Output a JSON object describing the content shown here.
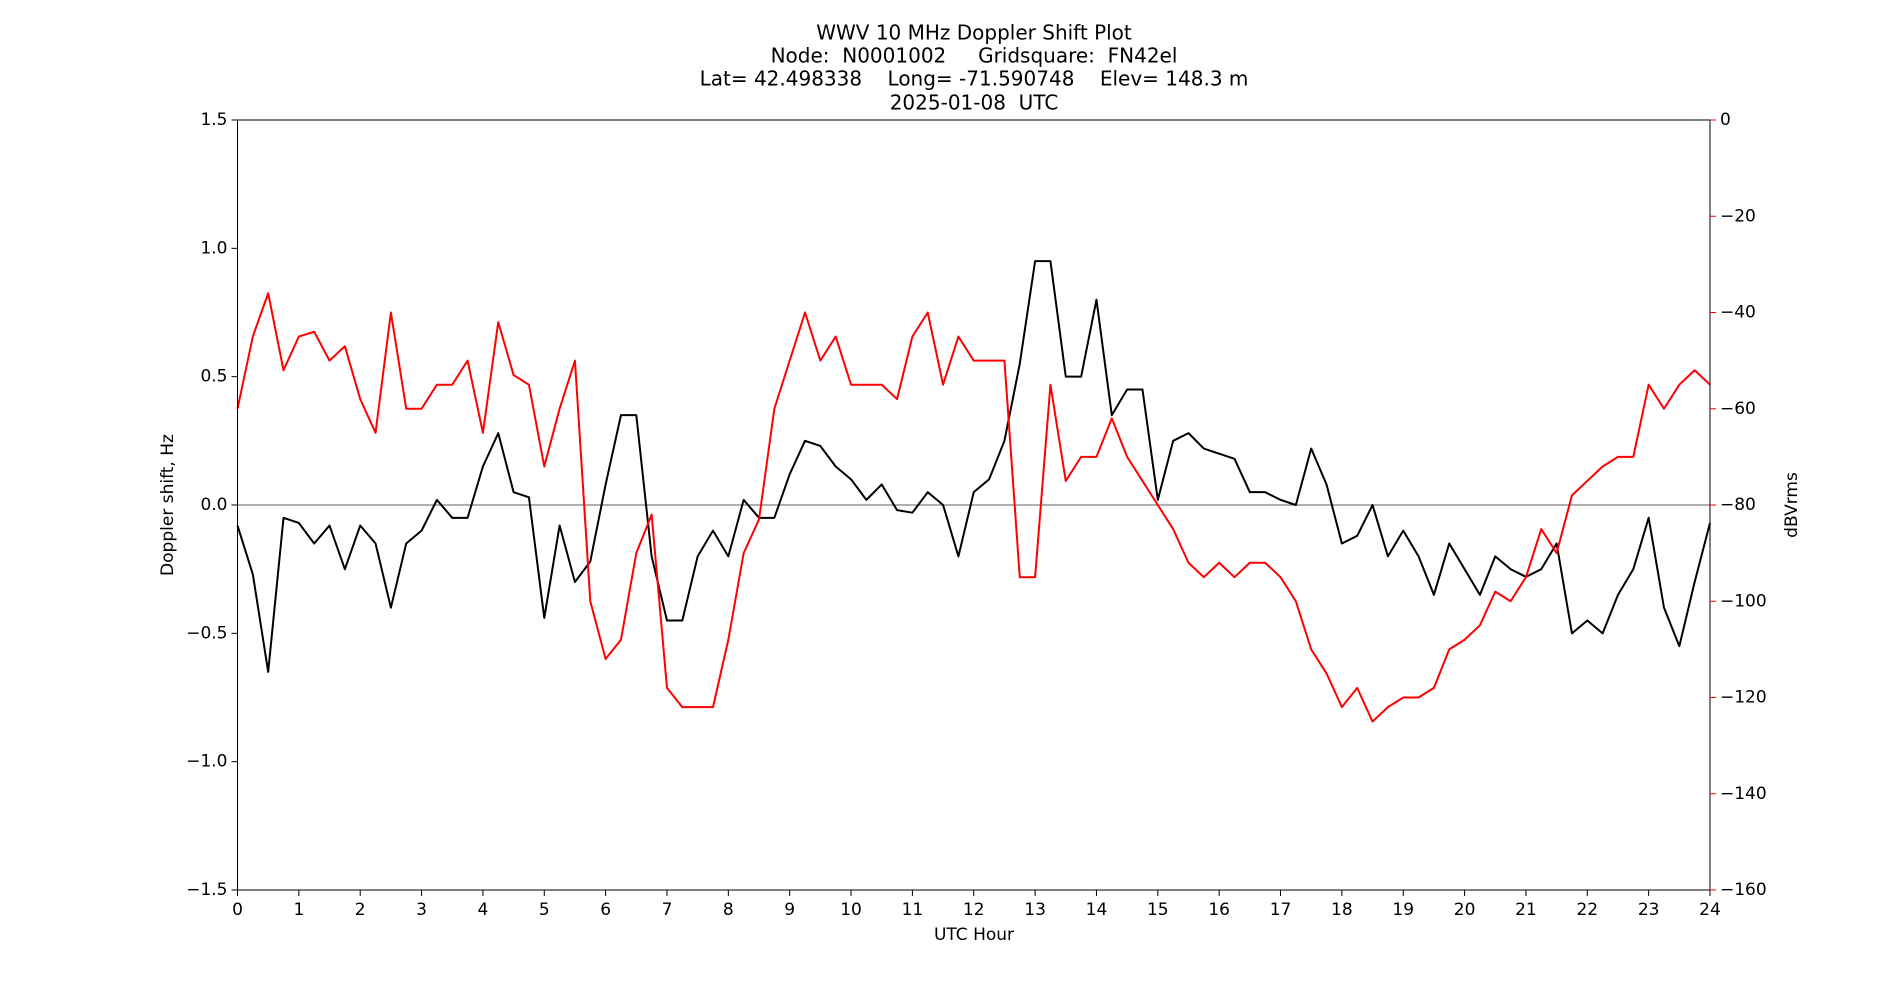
{
  "chart_data": {
    "type": "line",
    "title_lines": [
      "WWV 10 MHz Doppler Shift Plot",
      "Node:  N0001002     Gridsquare:  FN42el",
      "Lat= 42.498338    Long= -71.590748    Elev= 148.3 m",
      "2025-01-08  UTC"
    ],
    "xlabel": "UTC Hour",
    "ylabel": "Doppler shift, Hz",
    "y2label": "dBVrms",
    "xlim": [
      0,
      24
    ],
    "xticks": [
      0,
      1,
      2,
      3,
      4,
      5,
      6,
      7,
      8,
      9,
      10,
      11,
      12,
      13,
      14,
      15,
      16,
      17,
      18,
      19,
      20,
      21,
      22,
      23,
      24
    ],
    "ylim": [
      -1.5,
      1.5
    ],
    "yticks": [
      {
        "value": -1.5,
        "label": "−1.5"
      },
      {
        "value": -1.0,
        "label": "−1.0"
      },
      {
        "value": -0.5,
        "label": "−0.5"
      },
      {
        "value": 0,
        "label": "0.0"
      },
      {
        "value": 0.5,
        "label": "0.5"
      },
      {
        "value": 1.0,
        "label": "1.0"
      },
      {
        "value": 1.5,
        "label": "1.5"
      }
    ],
    "y2lim": [
      -160,
      0
    ],
    "y2ticks": [
      {
        "value": -160,
        "label": "−160"
      },
      {
        "value": -140,
        "label": "−140"
      },
      {
        "value": -120,
        "label": "−120"
      },
      {
        "value": -100,
        "label": "−100"
      },
      {
        "value": -80,
        "label": "−80"
      },
      {
        "value": -60,
        "label": "−60"
      },
      {
        "value": -40,
        "label": "−40"
      },
      {
        "value": -20,
        "label": "−20"
      },
      0
    ],
    "y2color": "#ff0000",
    "zero_line_color": "#808080",
    "x": [
      0,
      0.25,
      0.5,
      0.75,
      1,
      1.25,
      1.5,
      1.75,
      2,
      2.25,
      2.5,
      2.75,
      3,
      3.25,
      3.5,
      3.75,
      4,
      4.25,
      4.5,
      4.75,
      5,
      5.25,
      5.5,
      5.75,
      6,
      6.25,
      6.5,
      6.75,
      7,
      7.25,
      7.5,
      7.75,
      8,
      8.25,
      8.5,
      8.75,
      9,
      9.25,
      9.5,
      9.75,
      10,
      10.25,
      10.5,
      10.75,
      11,
      11.25,
      11.5,
      11.75,
      12,
      12.25,
      12.5,
      12.75,
      13,
      13.25,
      13.5,
      13.75,
      14,
      14.25,
      14.5,
      14.75,
      15,
      15.25,
      15.5,
      15.75,
      16,
      16.25,
      16.5,
      16.75,
      17,
      17.25,
      17.5,
      17.75,
      18,
      18.25,
      18.5,
      18.75,
      19,
      19.25,
      19.5,
      19.75,
      20,
      20.25,
      20.5,
      20.75,
      21,
      21.25,
      21.5,
      21.75,
      22,
      22.25,
      22.5,
      22.75,
      23,
      23.25,
      23.5,
      23.75,
      24
    ],
    "series": [
      {
        "name": "Doppler shift",
        "color": "#000000",
        "values": [
          -0.08,
          -0.27,
          -0.65,
          -0.05,
          -0.07,
          -0.15,
          -0.08,
          -0.25,
          -0.08,
          -0.15,
          -0.4,
          -0.15,
          -0.1,
          0.02,
          -0.05,
          -0.05,
          0.15,
          0.28,
          0.05,
          0.03,
          -0.44,
          -0.08,
          -0.3,
          -0.22,
          0.08,
          0.35,
          0.35,
          -0.2,
          -0.45,
          -0.45,
          -0.2,
          -0.1,
          -0.2,
          0.02,
          -0.05,
          -0.05,
          0.12,
          0.25,
          0.23,
          0.15,
          0.1,
          0.02,
          0.08,
          -0.02,
          -0.03,
          0.05,
          0,
          -0.2,
          0.05,
          0.1,
          0.25,
          0.55,
          0.95,
          0.95,
          0.5,
          0.5,
          0.8,
          0.35,
          0.45,
          0.45,
          0.02,
          0.25,
          0.28,
          0.22,
          0.2,
          0.18,
          0.05,
          0.05,
          0.02,
          0,
          0.22,
          0.08,
          -0.15,
          -0.12,
          0,
          -0.2,
          -0.1,
          -0.2,
          -0.35,
          -0.15,
          -0.25,
          -0.35,
          -0.2,
          -0.25,
          -0.28,
          -0.25,
          -0.15,
          -0.5,
          -0.45,
          -0.5,
          -0.35,
          -0.25,
          -0.05,
          -0.4,
          -0.55,
          -0.3,
          -0.07
        ]
      },
      {
        "name": "dBVrms",
        "color": "#ff0000",
        "axis": "y2",
        "values": [
          -60,
          -45,
          -36,
          -52,
          -45,
          -44,
          -50,
          -47,
          -58,
          -65,
          -40,
          -60,
          -60,
          -55,
          -55,
          -50,
          -65,
          -42,
          -53,
          -55,
          -72,
          -60,
          -50,
          -100,
          -112,
          -108,
          -90,
          -82,
          -118,
          -122,
          -122,
          -122,
          -108,
          -90,
          -83,
          -60,
          -50,
          -40,
          -50,
          -45,
          -55,
          -55,
          -55,
          -58,
          -45,
          -40,
          -55,
          -45,
          -50,
          -50,
          -50,
          -95,
          -95,
          -55,
          -75,
          -70,
          -70,
          -62,
          -70,
          -75,
          -80,
          -85,
          -92,
          -95,
          -92,
          -95,
          -92,
          -92,
          -95,
          -100,
          -110,
          -115,
          -122,
          -118,
          -125,
          -122,
          -120,
          -120,
          -118,
          -110,
          -108,
          -105,
          -98,
          -100,
          -95,
          -85,
          -90,
          -78,
          -75,
          -72,
          -70,
          -70,
          -55,
          -60,
          -55,
          -52,
          -55
        ]
      }
    ]
  }
}
